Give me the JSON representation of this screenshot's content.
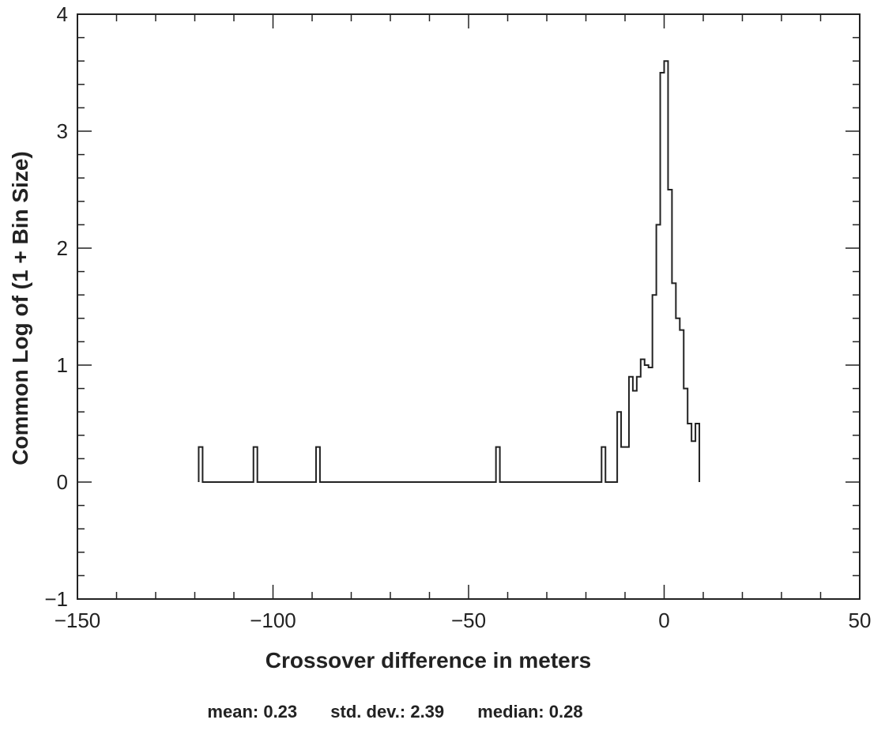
{
  "chart_data": {
    "type": "histogram",
    "xlabel": "Crossover difference in meters",
    "ylabel": "Common Log of (1 + Bin Size)",
    "xlim": [
      -150,
      50
    ],
    "ylim": [
      -1,
      4
    ],
    "x_ticks": [
      "-150",
      "-100",
      "-50",
      "0",
      "50"
    ],
    "y_ticks": [
      "-1",
      "0",
      "1",
      "2",
      "3",
      "4"
    ],
    "bin_width": 1,
    "bins": [
      {
        "x": -119,
        "y": 0.3
      },
      {
        "x": -105,
        "y": 0.3
      },
      {
        "x": -89,
        "y": 0.3
      },
      {
        "x": -43,
        "y": 0.3
      },
      {
        "x": -16,
        "y": 0.3
      },
      {
        "x": -12,
        "y": 0.6
      },
      {
        "x": -11,
        "y": 0.3
      },
      {
        "x": -10,
        "y": 0.3
      },
      {
        "x": -9,
        "y": 0.9
      },
      {
        "x": -8,
        "y": 0.78
      },
      {
        "x": -7,
        "y": 0.9
      },
      {
        "x": -6,
        "y": 1.05
      },
      {
        "x": -5,
        "y": 1.0
      },
      {
        "x": -4,
        "y": 0.98
      },
      {
        "x": -3,
        "y": 1.6
      },
      {
        "x": -2,
        "y": 2.2
      },
      {
        "x": -1,
        "y": 3.5
      },
      {
        "x": 0,
        "y": 3.6
      },
      {
        "x": 1,
        "y": 2.5
      },
      {
        "x": 2,
        "y": 1.7
      },
      {
        "x": 3,
        "y": 1.4
      },
      {
        "x": 4,
        "y": 1.3
      },
      {
        "x": 5,
        "y": 0.8
      },
      {
        "x": 6,
        "y": 0.5
      },
      {
        "x": 7,
        "y": 0.35
      },
      {
        "x": 8,
        "y": 0.5
      }
    ],
    "grid": false
  },
  "stats": {
    "mean": "mean: 0.23",
    "std_dev": "std. dev.: 2.39",
    "median": "median: 0.28"
  },
  "colors": {
    "line": "#222222",
    "axis": "#222222",
    "background": "#ffffff"
  }
}
